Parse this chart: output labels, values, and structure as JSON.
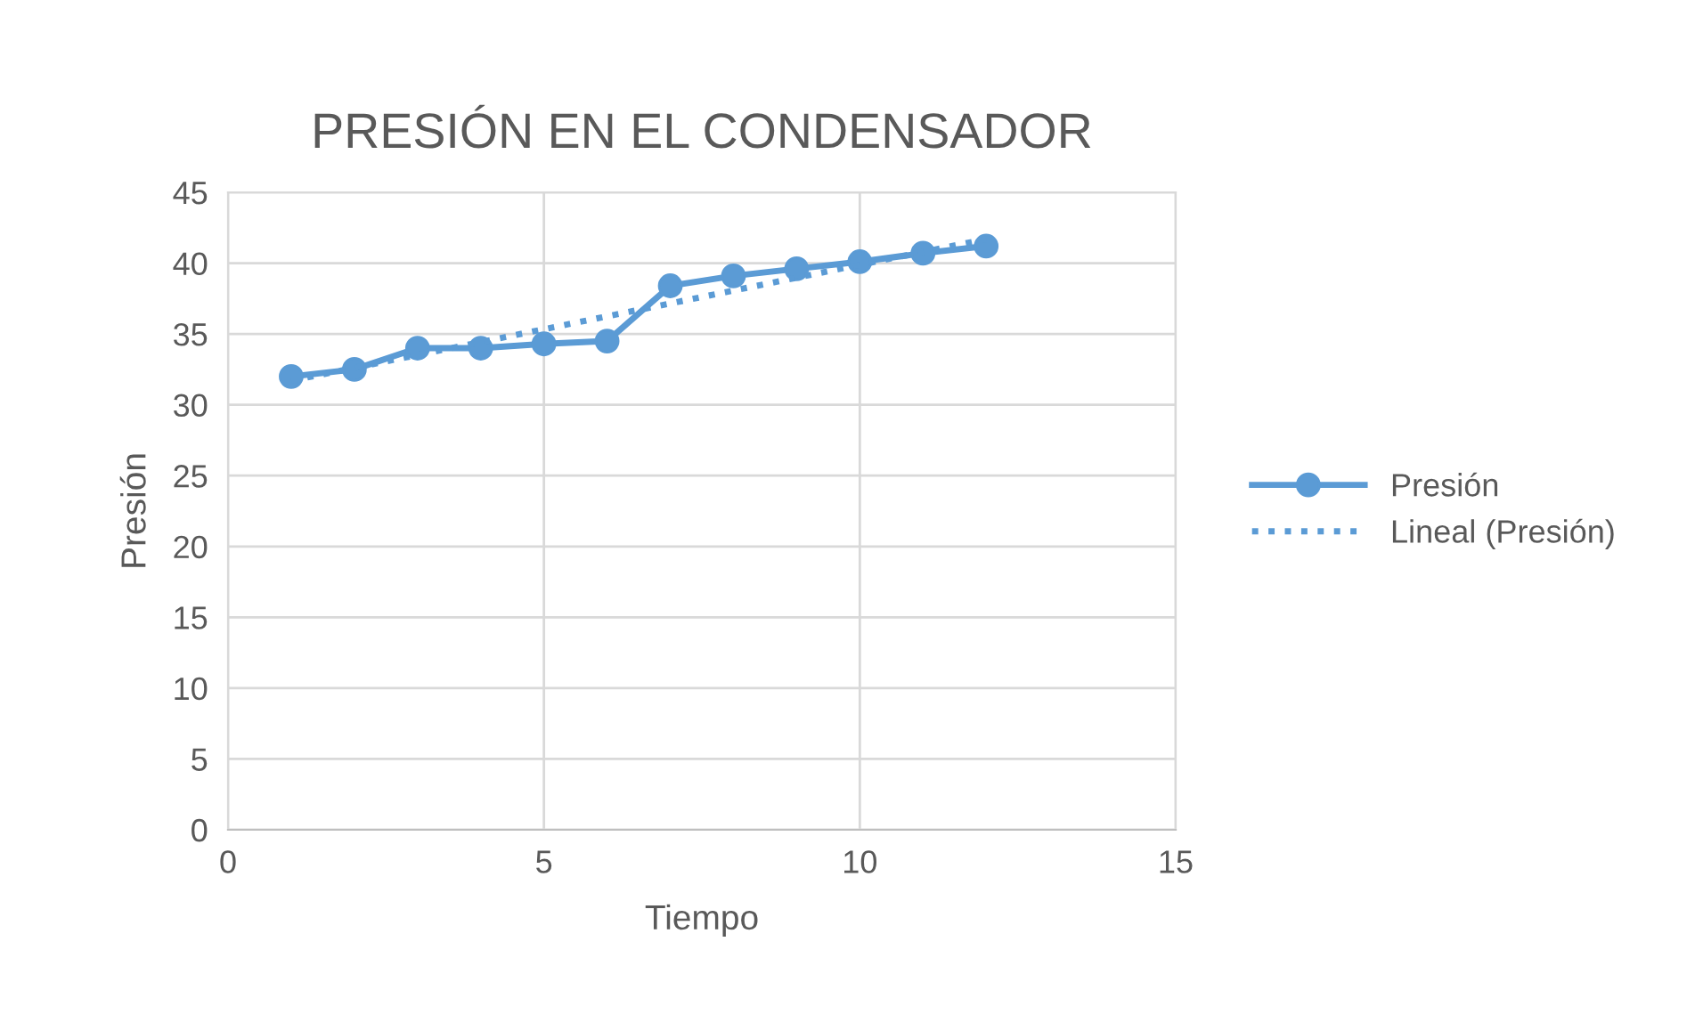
{
  "chart_data": {
    "type": "line",
    "title": "PRESIÓN EN EL CONDENSADOR",
    "xlabel": "Tiempo",
    "ylabel": "Presión",
    "x": [
      1,
      2,
      3,
      4,
      5,
      6,
      7,
      8,
      9,
      10,
      11,
      12
    ],
    "series": [
      {
        "name": "Presión",
        "color": "#5b9bd5",
        "values": [
          32.0,
          32.5,
          34.0,
          34.0,
          34.3,
          34.5,
          38.4,
          39.1,
          39.6,
          40.1,
          40.7,
          41.2
        ],
        "marker": "circle",
        "line_style": "solid"
      },
      {
        "name": "Lineal (Presión)",
        "color": "#5b9bd5",
        "x": [
          1,
          12
        ],
        "values": [
          31.7,
          41.7
        ],
        "marker": "none",
        "line_style": "dotted"
      }
    ],
    "xlim": [
      0,
      15
    ],
    "xticks": [
      0,
      5,
      10,
      15
    ],
    "ylim": [
      0,
      45
    ],
    "yticks": [
      0,
      5,
      10,
      15,
      20,
      25,
      30,
      35,
      40,
      45
    ],
    "grid": true,
    "legend": "right"
  }
}
